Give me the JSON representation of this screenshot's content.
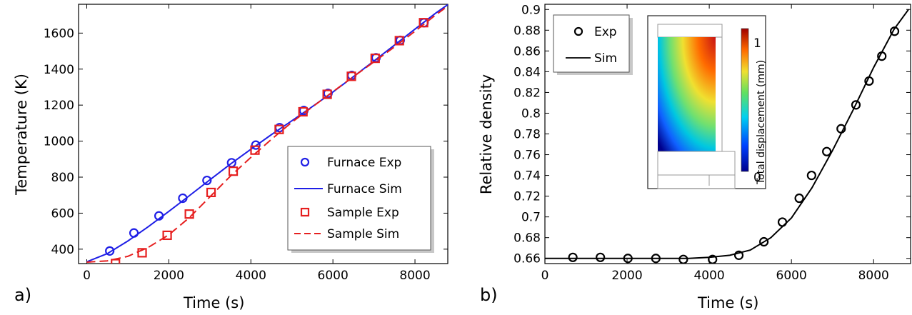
{
  "chart_data": [
    {
      "type": "line",
      "panel_label": "a)",
      "xlabel": "Time (s)",
      "ylabel": "Temperature (K)",
      "xlim": [
        -200,
        8800
      ],
      "ylim": [
        320,
        1760
      ],
      "xticks": [
        0,
        2000,
        4000,
        6000,
        8000
      ],
      "yticks": [
        400,
        600,
        800,
        1000,
        1200,
        1400,
        1600
      ],
      "grid": false,
      "legend_position": "bottom-right",
      "series": [
        {
          "name": "Furnace Exp",
          "kind": "circle",
          "color": "#1f1fe6",
          "x": [
            560,
            1150,
            1760,
            2340,
            2930,
            3530,
            4120,
            4700,
            5290,
            5880,
            6460,
            7050,
            7640,
            8220
          ],
          "y": [
            390,
            490,
            585,
            683,
            782,
            880,
            978,
            1075,
            1170,
            1265,
            1365,
            1463,
            1560,
            1658
          ]
        },
        {
          "name": "Furnace Sim",
          "kind": "line",
          "color": "#1f1fe6",
          "x": [
            0,
            500,
            1000,
            1500,
            2000,
            2500,
            3000,
            3500,
            4000,
            4500,
            5000,
            5500,
            6000,
            6500,
            7000,
            7500,
            8000,
            8500,
            8800
          ],
          "y": [
            330,
            375,
            445,
            525,
            610,
            697,
            785,
            872,
            955,
            1036,
            1113,
            1192,
            1273,
            1358,
            1445,
            1533,
            1622,
            1710,
            1758
          ]
        },
        {
          "name": "Sample Exp",
          "kind": "square",
          "color": "#e61f1f",
          "x": [
            700,
            1350,
            1960,
            2500,
            3030,
            3570,
            4100,
            4690,
            5270,
            5860,
            6450,
            7030,
            7620,
            8210
          ],
          "y": [
            320,
            380,
            477,
            595,
            715,
            833,
            950,
            1065,
            1163,
            1260,
            1360,
            1460,
            1558,
            1658
          ]
        },
        {
          "name": "Sample Sim",
          "kind": "dash",
          "color": "#e61f1f",
          "x": [
            0,
            500,
            1000,
            1500,
            2000,
            2500,
            3000,
            3500,
            4000,
            4500,
            5000,
            5500,
            6000,
            6500,
            7000,
            7500,
            8000,
            8500,
            8800
          ],
          "y": [
            328,
            335,
            360,
            410,
            480,
            575,
            690,
            805,
            910,
            1010,
            1105,
            1190,
            1275,
            1358,
            1440,
            1523,
            1610,
            1700,
            1750
          ]
        }
      ]
    },
    {
      "type": "line",
      "panel_label": "b)",
      "xlabel": "Time (s)",
      "ylabel": "Relative density",
      "xlim": [
        0,
        8900
      ],
      "ylim": [
        0.655,
        0.905
      ],
      "xticks": [
        0,
        2000,
        4000,
        6000,
        8000
      ],
      "yticks": [
        0.66,
        0.68,
        0.7,
        0.72,
        0.74,
        0.76,
        0.78,
        0.8,
        0.82,
        0.84,
        0.86,
        0.88,
        0.9
      ],
      "grid": false,
      "legend_position": "top-left",
      "series": [
        {
          "name": "Exp",
          "kind": "circle",
          "color": "#000000",
          "x": [
            680,
            1350,
            2020,
            2700,
            3370,
            4080,
            4720,
            5330,
            5780,
            6490,
            6190,
            6860,
            7210,
            7570,
            7890,
            8200,
            8510
          ],
          "y": [
            0.661,
            0.661,
            0.66,
            0.66,
            0.659,
            0.659,
            0.663,
            0.676,
            0.695,
            0.74,
            0.718,
            0.763,
            0.785,
            0.808,
            0.831,
            0.855,
            0.879
          ]
        },
        {
          "name": "Sim",
          "kind": "line",
          "color": "#000000",
          "x": [
            0,
            1000,
            2000,
            3000,
            3500,
            4000,
            4500,
            5000,
            5500,
            6000,
            6500,
            7000,
            7500,
            8000,
            8500,
            8850
          ],
          "y": [
            0.66,
            0.66,
            0.66,
            0.66,
            0.66,
            0.661,
            0.663,
            0.668,
            0.68,
            0.699,
            0.728,
            0.764,
            0.803,
            0.844,
            0.881,
            0.9
          ]
        }
      ],
      "inset": {
        "colorbar_label": "Total displacement (mm)",
        "colorbar_ticks": [
          "1",
          "0"
        ]
      }
    }
  ]
}
